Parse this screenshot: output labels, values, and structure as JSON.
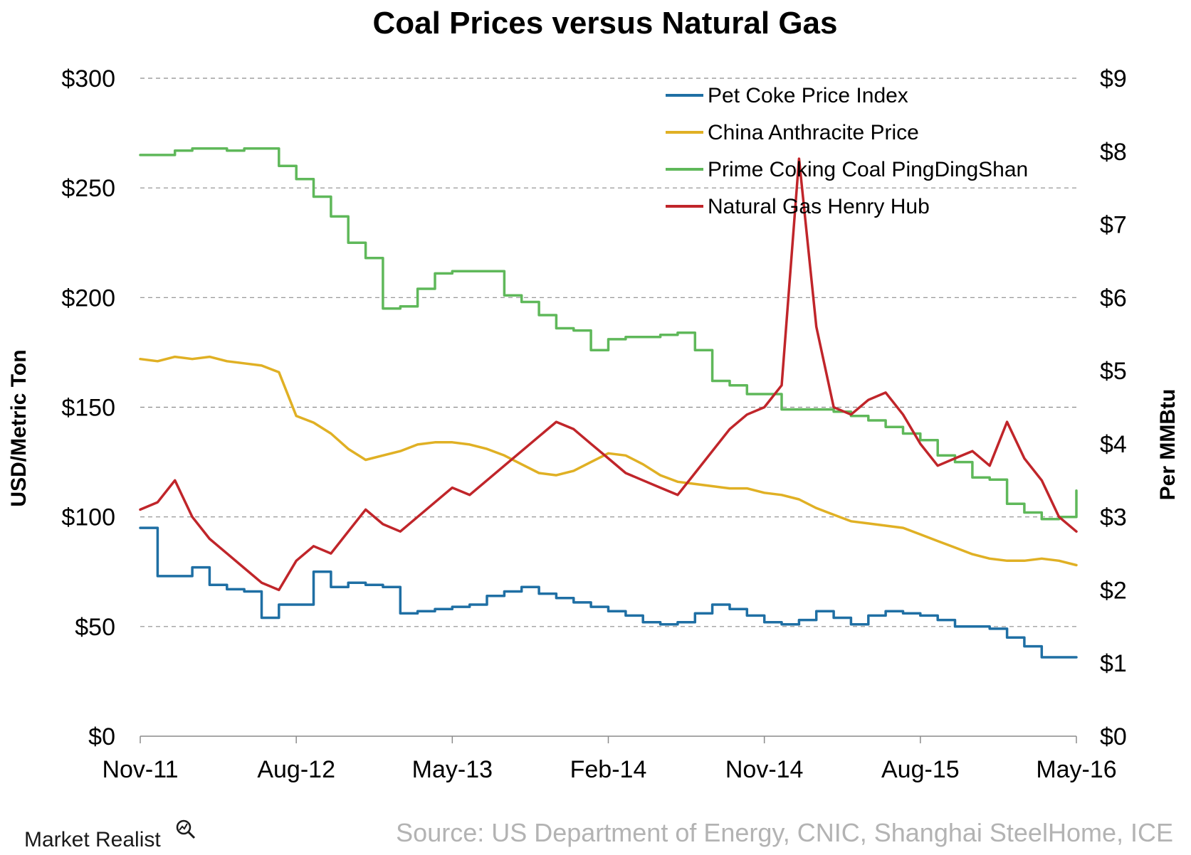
{
  "chart_data": {
    "type": "line",
    "title": "Coal Prices versus Natural Gas",
    "ylabel_left": "USD/Metric Ton",
    "ylabel_right": "Per MMBtu",
    "x_ticks": [
      "Nov-11",
      "Aug-12",
      "May-13",
      "Feb-14",
      "Nov-14",
      "Aug-15",
      "May-16"
    ],
    "x_range": [
      "2011-11",
      "2016-05"
    ],
    "y_left": {
      "min": 0,
      "max": 300,
      "ticks": [
        0,
        50,
        100,
        150,
        200,
        250,
        300
      ],
      "tick_labels": [
        "$0",
        "$50",
        "$100",
        "$150",
        "$200",
        "$250",
        "$300"
      ]
    },
    "y_right": {
      "min": 0,
      "max": 9,
      "ticks": [
        0,
        1,
        2,
        3,
        4,
        5,
        6,
        7,
        8,
        9
      ],
      "tick_labels": [
        "$0",
        "$1",
        "$2",
        "$3",
        "$4",
        "$5",
        "$6",
        "$7",
        "$8",
        "$9"
      ]
    },
    "grid": "horizontal dashed",
    "legend_position": "top-right",
    "series": [
      {
        "name": "Pet Coke Price Index",
        "axis": "left",
        "color": "#1f6fa4",
        "step": true,
        "points": [
          [
            "2011-11",
            95
          ],
          [
            "2011-12",
            73
          ],
          [
            "2012-01",
            73
          ],
          [
            "2012-02",
            77
          ],
          [
            "2012-03",
            69
          ],
          [
            "2012-04",
            67
          ],
          [
            "2012-05",
            66
          ],
          [
            "2012-06",
            54
          ],
          [
            "2012-07",
            60
          ],
          [
            "2012-09",
            75
          ],
          [
            "2012-10",
            68
          ],
          [
            "2012-11",
            70
          ],
          [
            "2012-12",
            69
          ],
          [
            "2013-01",
            68
          ],
          [
            "2013-02",
            56
          ],
          [
            "2013-03",
            57
          ],
          [
            "2013-04",
            58
          ],
          [
            "2013-05",
            59
          ],
          [
            "2013-06",
            60
          ],
          [
            "2013-07",
            64
          ],
          [
            "2013-08",
            66
          ],
          [
            "2013-09",
            68
          ],
          [
            "2013-10",
            65
          ],
          [
            "2013-11",
            63
          ],
          [
            "2013-12",
            61
          ],
          [
            "2014-01",
            59
          ],
          [
            "2014-02",
            57
          ],
          [
            "2014-03",
            55
          ],
          [
            "2014-04",
            52
          ],
          [
            "2014-05",
            51
          ],
          [
            "2014-06",
            52
          ],
          [
            "2014-07",
            56
          ],
          [
            "2014-08",
            60
          ],
          [
            "2014-09",
            58
          ],
          [
            "2014-10",
            55
          ],
          [
            "2014-11",
            52
          ],
          [
            "2014-12",
            51
          ],
          [
            "2015-01",
            53
          ],
          [
            "2015-02",
            57
          ],
          [
            "2015-03",
            54
          ],
          [
            "2015-04",
            51
          ],
          [
            "2015-05",
            55
          ],
          [
            "2015-06",
            57
          ],
          [
            "2015-07",
            56
          ],
          [
            "2015-08",
            55
          ],
          [
            "2015-09",
            53
          ],
          [
            "2015-10",
            50
          ],
          [
            "2015-11",
            50
          ],
          [
            "2015-12",
            49
          ],
          [
            "2016-01",
            45
          ],
          [
            "2016-02",
            41
          ],
          [
            "2016-03",
            36
          ],
          [
            "2016-04",
            36
          ],
          [
            "2016-05",
            36
          ]
        ]
      },
      {
        "name": "China Anthracite Price",
        "axis": "left",
        "color": "#e0b024",
        "step": false,
        "points": [
          [
            "2011-11",
            172
          ],
          [
            "2011-12",
            171
          ],
          [
            "2012-01",
            173
          ],
          [
            "2012-02",
            172
          ],
          [
            "2012-03",
            173
          ],
          [
            "2012-04",
            171
          ],
          [
            "2012-05",
            170
          ],
          [
            "2012-06",
            169
          ],
          [
            "2012-07",
            166
          ],
          [
            "2012-08",
            146
          ],
          [
            "2012-09",
            143
          ],
          [
            "2012-10",
            138
          ],
          [
            "2012-11",
            131
          ],
          [
            "2012-12",
            126
          ],
          [
            "2013-01",
            128
          ],
          [
            "2013-02",
            130
          ],
          [
            "2013-03",
            133
          ],
          [
            "2013-04",
            134
          ],
          [
            "2013-05",
            134
          ],
          [
            "2013-06",
            133
          ],
          [
            "2013-07",
            131
          ],
          [
            "2013-08",
            128
          ],
          [
            "2013-09",
            124
          ],
          [
            "2013-10",
            120
          ],
          [
            "2013-11",
            119
          ],
          [
            "2013-12",
            121
          ],
          [
            "2014-01",
            125
          ],
          [
            "2014-02",
            129
          ],
          [
            "2014-03",
            128
          ],
          [
            "2014-04",
            124
          ],
          [
            "2014-05",
            119
          ],
          [
            "2014-06",
            116
          ],
          [
            "2014-07",
            115
          ],
          [
            "2014-08",
            114
          ],
          [
            "2014-09",
            113
          ],
          [
            "2014-10",
            113
          ],
          [
            "2014-11",
            111
          ],
          [
            "2014-12",
            110
          ],
          [
            "2015-01",
            108
          ],
          [
            "2015-02",
            104
          ],
          [
            "2015-03",
            101
          ],
          [
            "2015-04",
            98
          ],
          [
            "2015-05",
            97
          ],
          [
            "2015-06",
            96
          ],
          [
            "2015-07",
            95
          ],
          [
            "2015-08",
            92
          ],
          [
            "2015-09",
            89
          ],
          [
            "2015-10",
            86
          ],
          [
            "2015-11",
            83
          ],
          [
            "2015-12",
            81
          ],
          [
            "2016-01",
            80
          ],
          [
            "2016-02",
            80
          ],
          [
            "2016-03",
            81
          ],
          [
            "2016-04",
            80
          ],
          [
            "2016-05",
            78
          ]
        ]
      },
      {
        "name": "Prime Coking Coal PingDingShan",
        "axis": "left",
        "color": "#5fb85a",
        "step": true,
        "points": [
          [
            "2011-11",
            265
          ],
          [
            "2011-12",
            265
          ],
          [
            "2012-01",
            267
          ],
          [
            "2012-02",
            268
          ],
          [
            "2012-03",
            268
          ],
          [
            "2012-04",
            267
          ],
          [
            "2012-05",
            268
          ],
          [
            "2012-06",
            268
          ],
          [
            "2012-07",
            260
          ],
          [
            "2012-08",
            254
          ],
          [
            "2012-09",
            246
          ],
          [
            "2012-10",
            237
          ],
          [
            "2012-11",
            225
          ],
          [
            "2012-12",
            218
          ],
          [
            "2013-01",
            195
          ],
          [
            "2013-02",
            196
          ],
          [
            "2013-03",
            204
          ],
          [
            "2013-04",
            211
          ],
          [
            "2013-05",
            212
          ],
          [
            "2013-06",
            212
          ],
          [
            "2013-07",
            212
          ],
          [
            "2013-08",
            201
          ],
          [
            "2013-09",
            198
          ],
          [
            "2013-10",
            192
          ],
          [
            "2013-11",
            186
          ],
          [
            "2013-12",
            185
          ],
          [
            "2014-01",
            176
          ],
          [
            "2014-02",
            181
          ],
          [
            "2014-03",
            182
          ],
          [
            "2014-04",
            182
          ],
          [
            "2014-05",
            183
          ],
          [
            "2014-06",
            184
          ],
          [
            "2014-07",
            176
          ],
          [
            "2014-08",
            162
          ],
          [
            "2014-09",
            160
          ],
          [
            "2014-10",
            156
          ],
          [
            "2014-11",
            156
          ],
          [
            "2014-12",
            149
          ],
          [
            "2015-01",
            149
          ],
          [
            "2015-02",
            149
          ],
          [
            "2015-03",
            148
          ],
          [
            "2015-04",
            146
          ],
          [
            "2015-05",
            144
          ],
          [
            "2015-06",
            141
          ],
          [
            "2015-07",
            138
          ],
          [
            "2015-08",
            135
          ],
          [
            "2015-09",
            128
          ],
          [
            "2015-10",
            125
          ],
          [
            "2015-11",
            118
          ],
          [
            "2015-12",
            117
          ],
          [
            "2016-01",
            106
          ],
          [
            "2016-02",
            102
          ],
          [
            "2016-03",
            99
          ],
          [
            "2016-04",
            100
          ],
          [
            "2016-05",
            112
          ]
        ]
      },
      {
        "name": "Natural Gas Henry Hub",
        "axis": "right",
        "color": "#c0252a",
        "step": false,
        "points": [
          [
            "2011-11",
            3.1
          ],
          [
            "2011-12",
            3.2
          ],
          [
            "2012-01",
            3.5
          ],
          [
            "2012-02",
            3.0
          ],
          [
            "2012-03",
            2.7
          ],
          [
            "2012-04",
            2.5
          ],
          [
            "2012-05",
            2.3
          ],
          [
            "2012-06",
            2.1
          ],
          [
            "2012-07",
            2.0
          ],
          [
            "2012-08",
            2.4
          ],
          [
            "2012-09",
            2.6
          ],
          [
            "2012-10",
            2.5
          ],
          [
            "2012-11",
            2.8
          ],
          [
            "2012-12",
            3.1
          ],
          [
            "2013-01",
            2.9
          ],
          [
            "2013-02",
            2.8
          ],
          [
            "2013-03",
            3.0
          ],
          [
            "2013-04",
            3.2
          ],
          [
            "2013-05",
            3.4
          ],
          [
            "2013-06",
            3.3
          ],
          [
            "2013-07",
            3.5
          ],
          [
            "2013-08",
            3.7
          ],
          [
            "2013-09",
            3.9
          ],
          [
            "2013-10",
            4.1
          ],
          [
            "2013-11",
            4.3
          ],
          [
            "2013-12",
            4.2
          ],
          [
            "2014-01",
            4.0
          ],
          [
            "2014-02",
            3.8
          ],
          [
            "2014-03",
            3.6
          ],
          [
            "2014-04",
            3.5
          ],
          [
            "2014-05",
            3.4
          ],
          [
            "2014-06",
            3.3
          ],
          [
            "2014-07",
            3.6
          ],
          [
            "2014-08",
            3.9
          ],
          [
            "2014-09",
            4.2
          ],
          [
            "2014-10",
            4.4
          ],
          [
            "2014-11",
            4.5
          ],
          [
            "2014-12",
            4.8
          ],
          [
            "2015-01",
            7.9
          ],
          [
            "2015-02",
            5.6
          ],
          [
            "2015-03",
            4.5
          ],
          [
            "2015-04",
            4.4
          ],
          [
            "2015-05",
            4.6
          ],
          [
            "2015-06",
            4.7
          ],
          [
            "2015-07",
            4.4
          ],
          [
            "2015-08",
            4.0
          ],
          [
            "2015-09",
            3.7
          ],
          [
            "2015-10",
            3.8
          ],
          [
            "2015-11",
            3.9
          ],
          [
            "2015-12",
            3.7
          ],
          [
            "2016-01",
            4.3
          ],
          [
            "2016-02",
            3.8
          ],
          [
            "2016-03",
            3.5
          ],
          [
            "2016-04",
            3.0
          ],
          [
            "2016-05",
            2.8
          ]
        ]
      }
    ]
  },
  "footer": {
    "brand": "Market Realist",
    "source": "Source: US Department of Energy, CNIC, Shanghai SteelHome, ICE"
  }
}
